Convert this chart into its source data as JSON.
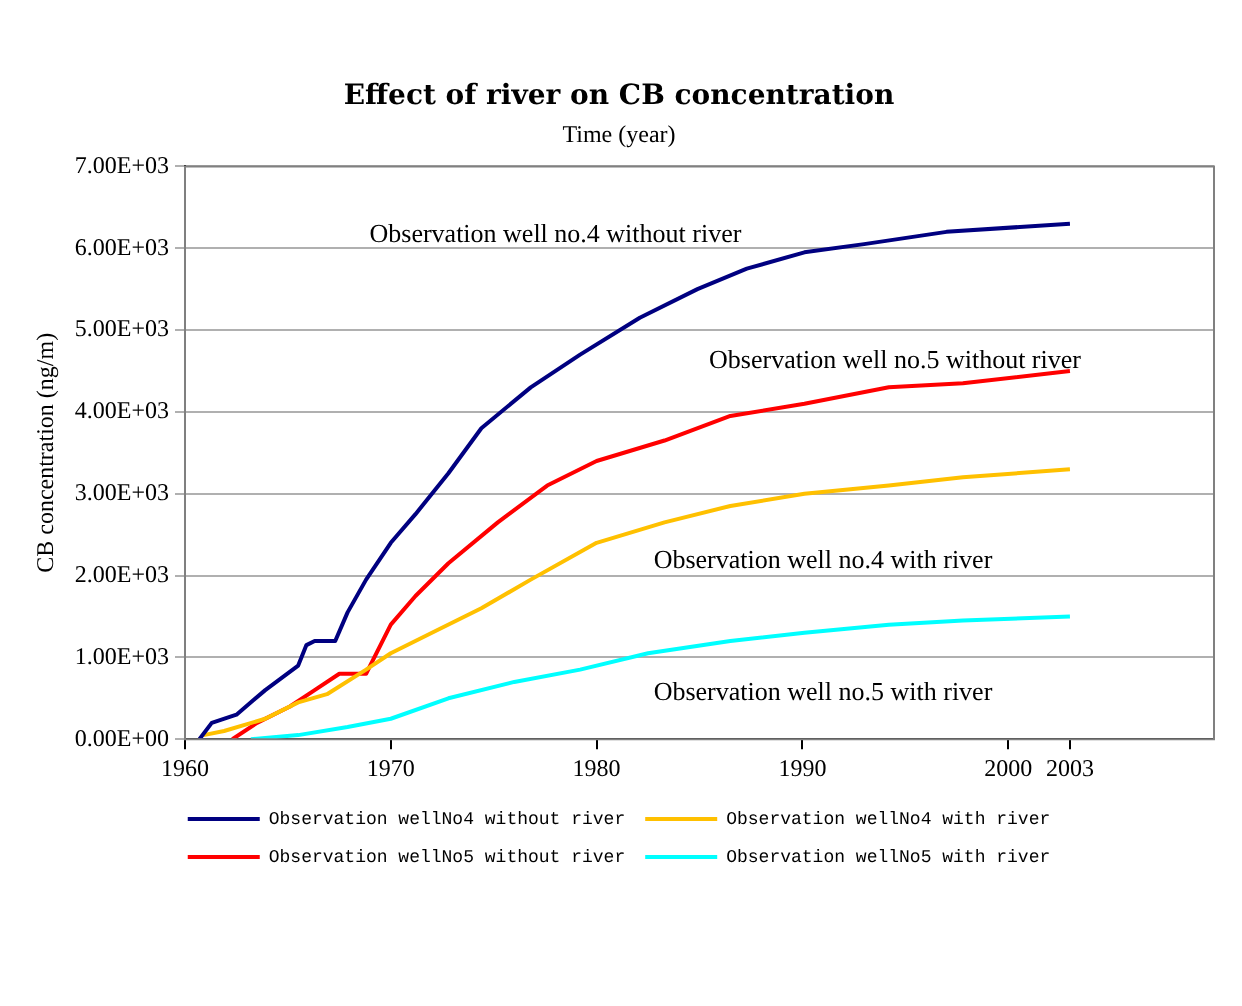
{
  "chart_data": {
    "type": "line",
    "title": "Effect of river on CB concentration",
    "xlabel": "Time (year)",
    "ylabel": "CB concentration (ng/m)",
    "xlim": [
      1960,
      2010
    ],
    "xticks": [
      1960,
      1970,
      1980,
      1990,
      2000,
      2003
    ],
    "ylim": [
      0,
      7000
    ],
    "yticks": [
      {
        "value": 0,
        "label": "0.00E+00"
      },
      {
        "value": 1000,
        "label": "1.00E+03"
      },
      {
        "value": 2000,
        "label": "2.00E+03"
      },
      {
        "value": 3000,
        "label": "3.00E+03"
      },
      {
        "value": 4000,
        "label": "4.00E+03"
      },
      {
        "value": 5000,
        "label": "5.00E+03"
      },
      {
        "value": 6000,
        "label": "6.00E+03"
      },
      {
        "value": 7000,
        "label": "7.00E+03"
      }
    ],
    "grid": "y",
    "legend": "bottom",
    "marker": "none",
    "line_style": "solid",
    "series": [
      {
        "name": "Observation wellNo4 without river",
        "color": "#000080",
        "x": [
          1960.7,
          1961.3,
          1962.5,
          1963.9,
          1965.5,
          1965.9,
          1966.3,
          1967.3,
          1967.9,
          1968.8,
          1970,
          1971.2,
          1972.8,
          1974.4,
          1976.8,
          1979.2,
          1982.1,
          1984.9,
          1987.3,
          1990.1,
          1993,
          1997,
          2003
        ],
        "values": [
          0,
          200,
          300,
          600,
          900,
          1150,
          1200,
          1200,
          1550,
          1950,
          2400,
          2750,
          3250,
          3800,
          4300,
          4700,
          5150,
          5500,
          5750,
          5950,
          6050,
          6200,
          6300
        ]
      },
      {
        "name": "Observation wellNo4 with river",
        "color": "#ffc000",
        "x": [
          1960.9,
          1961.9,
          1963.9,
          1965.5,
          1966.9,
          1968.8,
          1970,
          1972,
          1974.4,
          1976.8,
          1980,
          1983.3,
          1986.5,
          1990.1,
          1994.2,
          1997.8,
          2003
        ],
        "values": [
          50,
          100,
          250,
          450,
          550,
          850,
          1050,
          1300,
          1600,
          1950,
          2400,
          2650,
          2850,
          3000,
          3100,
          3200,
          3300
        ]
      },
      {
        "name": "Observation wellNo5 without river",
        "color": "#ff0000",
        "x": [
          1962.3,
          1963.5,
          1965.1,
          1966.3,
          1967.5,
          1968.8,
          1970,
          1971.2,
          1972.8,
          1975.2,
          1977.6,
          1980,
          1983.3,
          1986.5,
          1990.1,
          1994.2,
          1997.8,
          2003
        ],
        "values": [
          0,
          200,
          400,
          600,
          800,
          800,
          1400,
          1750,
          2150,
          2650,
          3100,
          3400,
          3650,
          3950,
          4100,
          4300,
          4350,
          4500
        ]
      },
      {
        "name": "Observation wellNo5 with river",
        "color": "#00ffff",
        "x": [
          1963.2,
          1965.5,
          1967.9,
          1970,
          1972.8,
          1976,
          1979.2,
          1982.5,
          1986.5,
          1990.1,
          1994.2,
          1997.8,
          2003
        ],
        "values": [
          0,
          50,
          150,
          250,
          500,
          700,
          850,
          1050,
          1200,
          1300,
          1400,
          1450,
          1500
        ]
      }
    ],
    "annotations": [
      "Observation well no.4 without river",
      "Observation well no.5 without river",
      "Observation well no.4 with river",
      "Observation well no.5 with river"
    ]
  }
}
